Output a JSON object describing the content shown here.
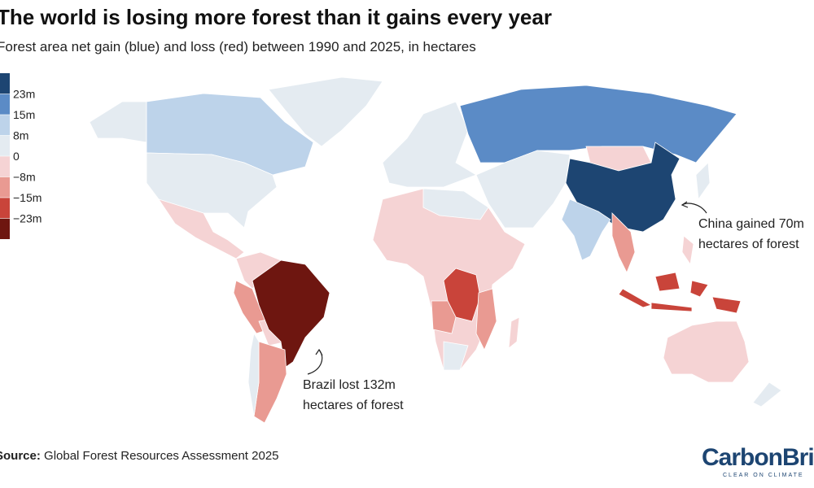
{
  "header": {
    "title": "The world is losing more forest than it gains every year",
    "subtitle": "Forest area net gain (blue) and loss (red) between 1990 and 2025, in hectares"
  },
  "legend": {
    "colors": [
      "#1d4572",
      "#5b8bc6",
      "#bdd3ea",
      "#e4ebf1",
      "#f5d3d4",
      "#e99a92",
      "#c9443a",
      "#6e1610"
    ],
    "ticks": [
      {
        "value": 23,
        "label": "23m"
      },
      {
        "value": 15,
        "label": "15m"
      },
      {
        "value": 8,
        "label": "8m"
      },
      0,
      {
        "value": -8,
        "label": "−8m"
      },
      {
        "value": -15,
        "label": "−15m"
      },
      {
        "value": -23,
        "label": "−23m"
      }
    ]
  },
  "annotations": [
    {
      "lines": [
        "China gained 70m",
        "hectares of forest"
      ]
    },
    {
      "lines": [
        "Brazil lost 132m",
        "hectares of forest"
      ]
    }
  ],
  "source": {
    "label": "Source:",
    "text": "Global Forest Resources Assessment 2025"
  },
  "logo": {
    "name": "CarbonBrief",
    "tagline": "CLEAR ON CLIMATE"
  }
}
